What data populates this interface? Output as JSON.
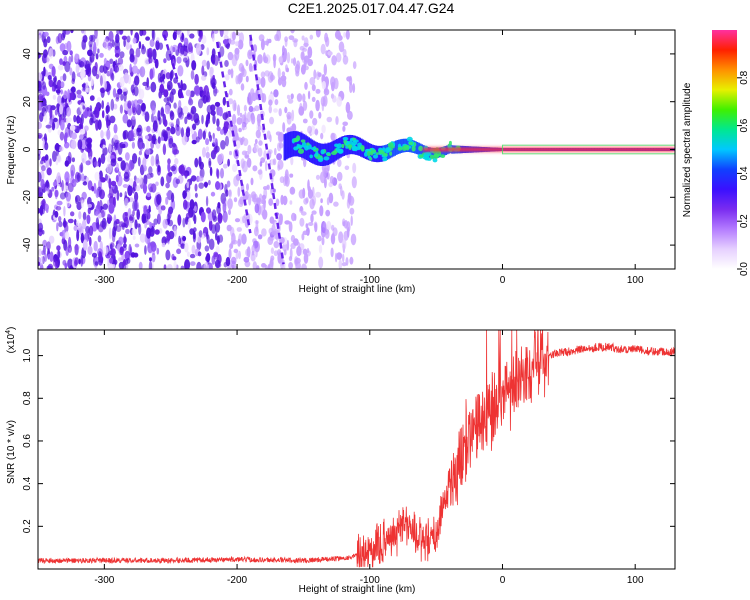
{
  "figure": {
    "title": "C2E1.2025.017.04.47.G24"
  },
  "chart_data": [
    {
      "type": "heatmap",
      "panel": "spectrogram",
      "xlabel": "Height of straight line (km)",
      "ylabel": "Frequency (Hz)",
      "xlim": [
        -350,
        130
      ],
      "ylim": [
        -50,
        50
      ],
      "xticks": [
        -300,
        -200,
        -100,
        0,
        100
      ],
      "yticks": [
        -40,
        -20,
        0,
        20,
        40
      ],
      "colorbar": {
        "label": "Normalized spectral amplitude",
        "range": [
          0.0,
          1.0
        ],
        "ticks": [
          0.0,
          0.2,
          0.4,
          0.6,
          0.8
        ],
        "tick_labels": [
          "0.0",
          "0.2",
          "0.4",
          "0.6",
          "0.8"
        ],
        "colormap": [
          "#ffffff",
          "#e6d0ff",
          "#b47cff",
          "#7a2cf0",
          "#3a10ff",
          "#1040ff",
          "#00c8ff",
          "#00e890",
          "#40f000",
          "#e8f000",
          "#ff9000",
          "#ff2000",
          "#ff30a0"
        ]
      },
      "features": {
        "noise_region_x": [
          -350,
          -110
        ],
        "signal_tone_start_x": -165,
        "signal_tone_frequency_hz": 0
      }
    },
    {
      "type": "line",
      "panel": "snr",
      "xlabel": "Height of straight line (km)",
      "ylabel": "SNR (10 * v/v)",
      "y_multiplier_label": "(x10",
      "y_multiplier_exp": "4",
      "y_multiplier_close": ")",
      "xlim": [
        -350,
        130
      ],
      "ylim": [
        0,
        1.12
      ],
      "xticks": [
        -300,
        -200,
        -100,
        0,
        100
      ],
      "yticks": [
        0.2,
        0.4,
        0.6,
        0.8,
        1.0
      ],
      "ytick_labels": [
        "0.2",
        "0.4",
        "0.6",
        "0.8",
        "1.0"
      ],
      "series": [
        {
          "color": "#ee3333",
          "x": [
            -350,
            -300,
            -250,
            -200,
            -150,
            -120,
            -100,
            -90,
            -80,
            -75,
            -70,
            -65,
            -60,
            -55,
            -50,
            -45,
            -40,
            -35,
            -30,
            -25,
            -20,
            -15,
            -10,
            -5,
            0,
            5,
            10,
            15,
            20,
            25,
            30,
            35,
            40,
            50,
            60,
            70,
            80,
            90,
            100,
            110,
            120,
            130
          ],
          "values": [
            0.04,
            0.04,
            0.04,
            0.045,
            0.04,
            0.05,
            0.07,
            0.12,
            0.18,
            0.22,
            0.2,
            0.16,
            0.13,
            0.12,
            0.16,
            0.3,
            0.4,
            0.45,
            0.55,
            0.66,
            0.68,
            0.7,
            0.72,
            0.75,
            0.8,
            0.82,
            0.85,
            0.88,
            0.92,
            0.95,
            0.98,
            1.0,
            1.01,
            1.02,
            1.03,
            1.04,
            1.04,
            1.03,
            1.03,
            1.02,
            1.02,
            1.02
          ]
        }
      ]
    }
  ]
}
